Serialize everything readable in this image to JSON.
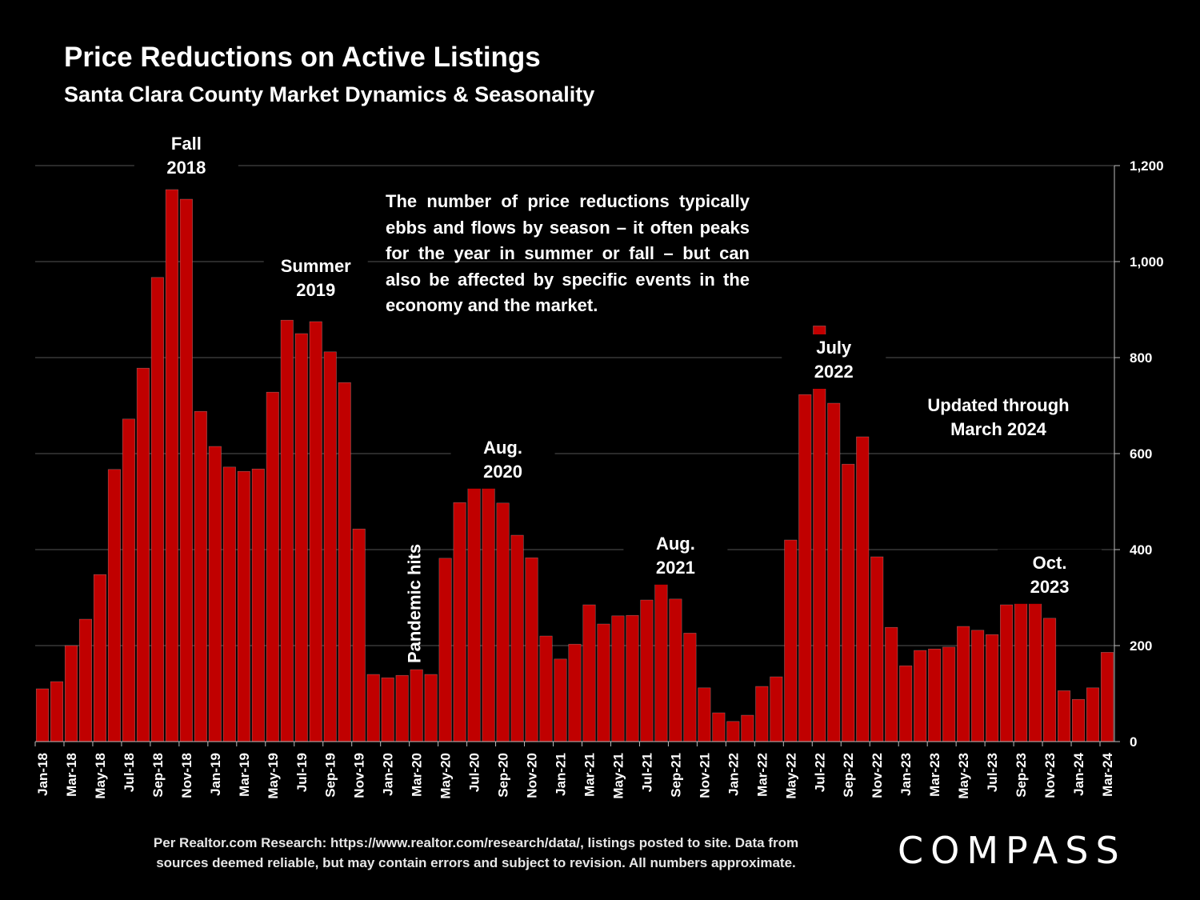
{
  "title": "Price Reductions on Active Listings",
  "subtitle": "Santa Clara County Market Dynamics & Seasonality",
  "note": "The number of price reductions typically ebbs and flows by season – it often peaks for the year in summer or fall – but can also be affected by specific events in the economy and the market.",
  "updated": [
    "Updated through",
    "March 2024"
  ],
  "footer": [
    "Per Realtor.com Research:  https://www.realtor.com/research/data/, listings posted to site. Data from",
    "sources deemed reliable, but may contain errors and subject to revision. All numbers approximate."
  ],
  "logo": "COMPASS",
  "colors": {
    "bar": "#c00000",
    "background": "#000000",
    "grid": "#555555",
    "text": "#ffffff"
  },
  "chart_data": {
    "type": "bar",
    "title": "Price Reductions on Active Listings",
    "ylim": [
      0,
      1200
    ],
    "yticks": [
      "0",
      "200",
      "400",
      "600",
      "800",
      "1,000",
      "1,200"
    ],
    "ytick_values": [
      0,
      200,
      400,
      600,
      800,
      1000,
      1200
    ],
    "categories": [
      "Jan-18",
      "Feb-18",
      "Mar-18",
      "Apr-18",
      "May-18",
      "Jun-18",
      "Jul-18",
      "Aug-18",
      "Sep-18",
      "Oct-18",
      "Nov-18",
      "Dec-18",
      "Jan-19",
      "Feb-19",
      "Mar-19",
      "Apr-19",
      "May-19",
      "Jun-19",
      "Jul-19",
      "Aug-19",
      "Sep-19",
      "Oct-19",
      "Nov-19",
      "Dec-19",
      "Jan-20",
      "Feb-20",
      "Mar-20",
      "Apr-20",
      "May-20",
      "Jun-20",
      "Jul-20",
      "Aug-20",
      "Sep-20",
      "Oct-20",
      "Nov-20",
      "Dec-20",
      "Jan-21",
      "Feb-21",
      "Mar-21",
      "Apr-21",
      "May-21",
      "Jun-21",
      "Jul-21",
      "Aug-21",
      "Sep-21",
      "Oct-21",
      "Nov-21",
      "Dec-21",
      "Jan-22",
      "Feb-22",
      "Mar-22",
      "Apr-22",
      "May-22",
      "Jun-22",
      "Jul-22",
      "Aug-22",
      "Sep-22",
      "Oct-22",
      "Nov-22",
      "Dec-22",
      "Jan-23",
      "Feb-23",
      "Mar-23",
      "Apr-23",
      "May-23",
      "Jun-23",
      "Jul-23",
      "Aug-23",
      "Sep-23",
      "Oct-23",
      "Nov-23",
      "Dec-23",
      "Jan-24",
      "Feb-24",
      "Mar-24"
    ],
    "values": [
      110,
      125,
      200,
      255,
      348,
      567,
      672,
      778,
      967,
      1150,
      1130,
      688,
      615,
      572,
      563,
      568,
      728,
      878,
      850,
      875,
      812,
      748,
      443,
      140,
      133,
      138,
      150,
      140,
      382,
      498,
      535,
      540,
      497,
      430,
      383,
      220,
      172,
      203,
      285,
      245,
      262,
      263,
      295,
      333,
      297,
      226,
      112,
      60,
      42,
      55,
      115,
      135,
      420,
      723,
      866,
      705,
      578,
      635,
      385,
      238,
      158,
      190,
      193,
      197,
      240,
      232,
      223,
      285,
      312,
      328,
      257,
      106,
      88,
      112,
      186
    ],
    "xtick_labels": [
      "Jan-18",
      "Mar-18",
      "May-18",
      "Jul-18",
      "Sep-18",
      "Nov-18",
      "Jan-19",
      "Mar-19",
      "May-19",
      "Jul-19",
      "Sep-19",
      "Nov-19",
      "Jan-20",
      "Mar-20",
      "May-20",
      "Jul-20",
      "Sep-20",
      "Nov-20",
      "Jan-21",
      "Mar-21",
      "May-21",
      "Jul-21",
      "Sep-21",
      "Nov-21",
      "Jan-22",
      "Mar-22",
      "May-22",
      "Jul-22",
      "Sep-22",
      "Nov-22",
      "Jan-23",
      "Mar-23",
      "May-23",
      "Jul-23",
      "Sep-23",
      "Nov-23",
      "Jan-24",
      "Mar-24"
    ],
    "annotations": [
      {
        "lines": [
          "Fall",
          "2018"
        ],
        "index": 10
      },
      {
        "lines": [
          "Summer",
          "2019"
        ],
        "index": 19
      },
      {
        "lines": [
          "Aug.",
          "2020"
        ],
        "index": 32
      },
      {
        "lines": [
          "Aug.",
          "2021"
        ],
        "index": 44
      },
      {
        "lines": [
          "July",
          "2022"
        ],
        "index": 55
      },
      {
        "lines": [
          "Oct.",
          "2023"
        ],
        "index": 70
      },
      {
        "lines": [
          "Pandemic hits"
        ],
        "index": 26,
        "vertical": true
      }
    ]
  }
}
